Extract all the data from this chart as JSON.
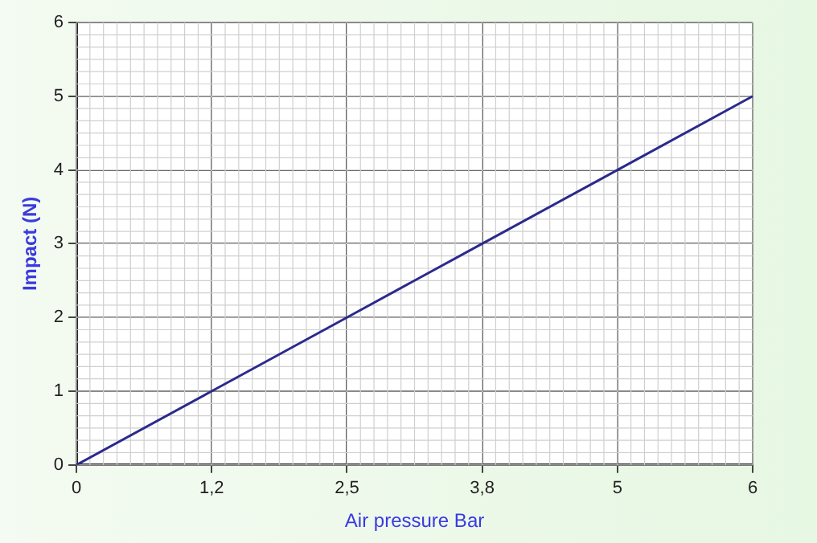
{
  "chart_data": {
    "type": "line",
    "xlabel": "Air pressure Bar",
    "ylabel": "Impact (N)",
    "categories": [
      "0",
      "1,2",
      "2,5",
      "3,8",
      "5",
      "6"
    ],
    "series": [
      {
        "color": "#2b2a8c",
        "values": [
          0,
          1,
          2,
          3,
          4,
          5
        ]
      }
    ],
    "ylim": [
      0,
      6
    ],
    "yticks": [
      0,
      1,
      2,
      3,
      4,
      5,
      6
    ],
    "grid": true,
    "legend": false,
    "marker": "none",
    "line_style": "solid"
  }
}
